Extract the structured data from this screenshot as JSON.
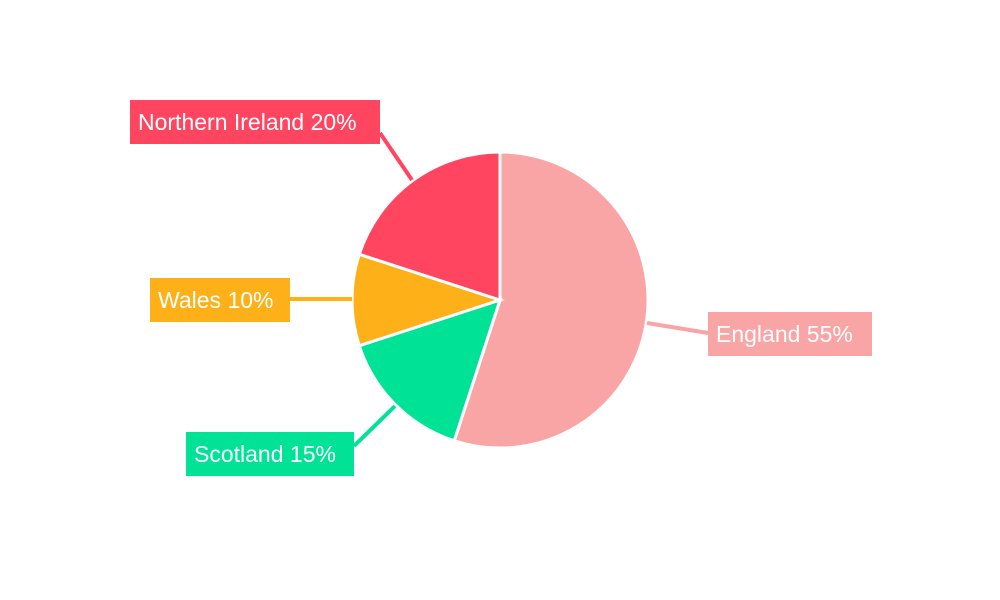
{
  "chart_data": {
    "type": "pie",
    "title": "",
    "start_angle": "top",
    "direction": "clockwise",
    "slices": [
      {
        "label": "England",
        "value": 55,
        "display": "England 55%",
        "color": "#F9A5A5"
      },
      {
        "label": "Scotland",
        "value": 15,
        "display": "Scotland 15%",
        "color": "#00E396"
      },
      {
        "label": "Wales",
        "value": 10,
        "display": "Wales 10%",
        "color": "#FEB019"
      },
      {
        "label": "Northern Ireland",
        "value": 20,
        "display": "Northern Ireland 20%",
        "color": "#FF4560"
      }
    ],
    "legend": "none",
    "labels": "outside-boxed"
  }
}
